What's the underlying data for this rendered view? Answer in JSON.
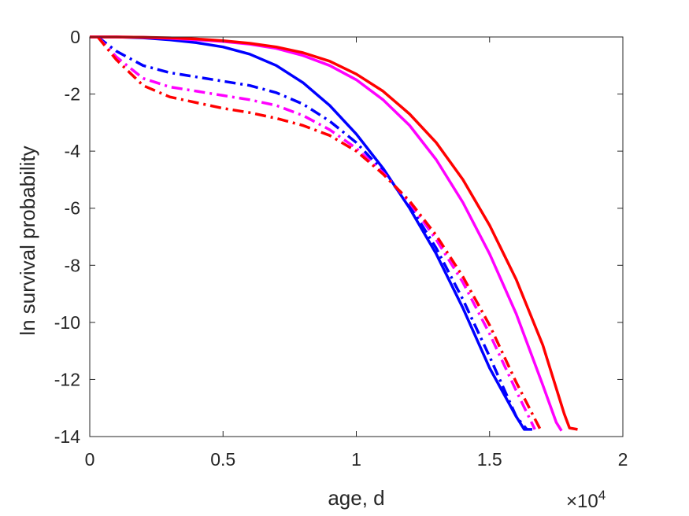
{
  "chart_data": {
    "type": "line",
    "title": "",
    "xlabel": "age, d",
    "ylabel": "ln survival probability",
    "x_exponent_label": {
      "base": "×10",
      "exponent": "4"
    },
    "xlim": [
      0,
      20000
    ],
    "ylim": [
      -14,
      0
    ],
    "x_ticks": [
      {
        "value": 0,
        "label": "0"
      },
      {
        "value": 5000,
        "label": "0.5"
      },
      {
        "value": 10000,
        "label": "1"
      },
      {
        "value": 15000,
        "label": "1.5"
      },
      {
        "value": 20000,
        "label": "2"
      }
    ],
    "y_ticks": [
      {
        "value": 0,
        "label": "0"
      },
      {
        "value": -2,
        "label": "-2"
      },
      {
        "value": -4,
        "label": "-4"
      },
      {
        "value": -6,
        "label": "-6"
      },
      {
        "value": -8,
        "label": "-8"
      },
      {
        "value": -10,
        "label": "-10"
      },
      {
        "value": -12,
        "label": "-12"
      },
      {
        "value": -14,
        "label": "-14"
      }
    ],
    "grid": false,
    "legend": "none",
    "series": [
      {
        "color": "#0000ff",
        "style": "solid",
        "x": [
          0,
          1000,
          2000,
          3000,
          4000,
          5000,
          6000,
          7000,
          8000,
          9000,
          10000,
          11000,
          12000,
          13000,
          14000,
          15000,
          16000,
          16300,
          16600
        ],
        "y": [
          0,
          0,
          -0.03,
          -0.1,
          -0.2,
          -0.35,
          -0.6,
          -1.0,
          -1.6,
          -2.4,
          -3.4,
          -4.6,
          -6.0,
          -7.6,
          -9.5,
          -11.6,
          -13.3,
          -13.75,
          -13.75
        ]
      },
      {
        "color": "#ff00ff",
        "style": "solid",
        "x": [
          0,
          1000,
          2000,
          3000,
          4000,
          5000,
          6000,
          7000,
          8000,
          9000,
          10000,
          11000,
          12000,
          13000,
          14000,
          15000,
          16000,
          17000,
          17500,
          17700
        ],
        "y": [
          0,
          0,
          -0.01,
          -0.05,
          -0.1,
          -0.16,
          -0.25,
          -0.4,
          -0.65,
          -1.0,
          -1.5,
          -2.2,
          -3.1,
          -4.3,
          -5.8,
          -7.6,
          -9.7,
          -12.2,
          -13.5,
          -13.8
        ]
      },
      {
        "color": "#ff0000",
        "style": "solid",
        "x": [
          0,
          1000,
          2000,
          3000,
          4000,
          5000,
          6000,
          7000,
          8000,
          9000,
          10000,
          11000,
          12000,
          13000,
          14000,
          15000,
          16000,
          17000,
          17800,
          18000,
          18300
        ],
        "y": [
          0,
          0,
          -0.01,
          -0.03,
          -0.07,
          -0.13,
          -0.22,
          -0.35,
          -0.55,
          -0.85,
          -1.3,
          -1.9,
          -2.7,
          -3.7,
          -5.0,
          -6.6,
          -8.5,
          -10.8,
          -13.2,
          -13.7,
          -13.75
        ]
      },
      {
        "color": "#0000ff",
        "style": "dashdot",
        "x": [
          300,
          1000,
          2000,
          3000,
          4000,
          5000,
          6000,
          7000,
          8000,
          9000,
          10000,
          11000,
          12000,
          13000,
          14000,
          15000,
          16000,
          16400
        ],
        "y": [
          0,
          -0.5,
          -1.0,
          -1.25,
          -1.4,
          -1.55,
          -1.7,
          -1.95,
          -2.35,
          -2.95,
          -3.7,
          -4.7,
          -5.9,
          -7.4,
          -9.2,
          -11.2,
          -13.3,
          -13.75
        ]
      },
      {
        "color": "#ff00ff",
        "style": "dashdot",
        "x": [
          300,
          1000,
          2000,
          3000,
          4000,
          5000,
          6000,
          7000,
          8000,
          9000,
          10000,
          11000,
          12000,
          13000,
          14000,
          15000,
          16000,
          16700
        ],
        "y": [
          0,
          -0.7,
          -1.45,
          -1.75,
          -1.9,
          -2.05,
          -2.2,
          -2.4,
          -2.75,
          -3.25,
          -3.9,
          -4.75,
          -5.8,
          -7.1,
          -8.6,
          -10.4,
          -12.4,
          -13.75
        ]
      },
      {
        "color": "#ff0000",
        "style": "dashdot",
        "x": [
          300,
          1000,
          2000,
          3000,
          4000,
          5000,
          6000,
          7000,
          8000,
          9000,
          10000,
          11000,
          12000,
          13000,
          14000,
          15000,
          16000,
          16900
        ],
        "y": [
          0,
          -0.8,
          -1.7,
          -2.1,
          -2.3,
          -2.5,
          -2.65,
          -2.85,
          -3.1,
          -3.45,
          -4.0,
          -4.8,
          -5.75,
          -6.95,
          -8.4,
          -10.1,
          -12.1,
          -13.75
        ]
      }
    ]
  }
}
